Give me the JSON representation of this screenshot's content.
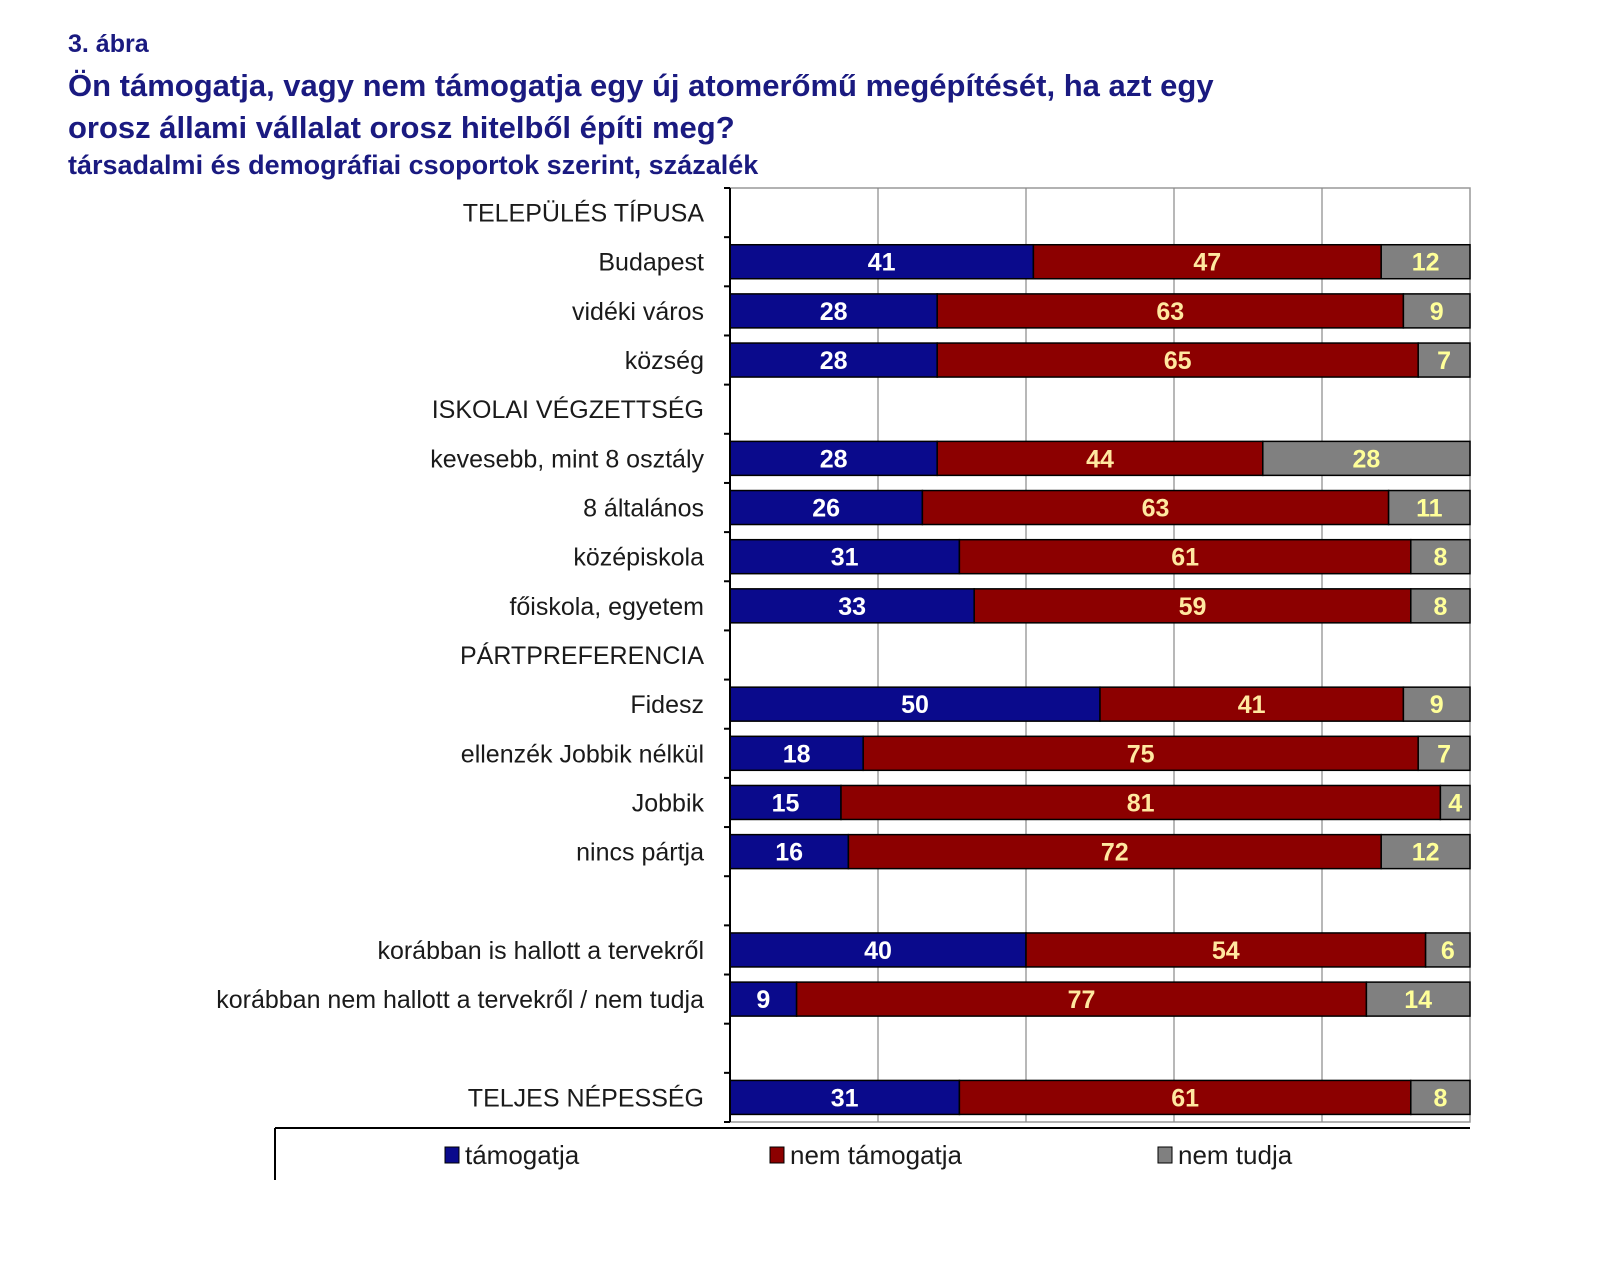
{
  "figure_number": "3.  ábra",
  "title_line1": "Ön támogatja, vagy nem támogatja egy új atomerőmű megépítését, ha azt egy",
  "title_line2": "orosz állami vállalat orosz hitelből építi meg?",
  "subtitle": "társadalmi és demográfiai csoportok szerint, százalék",
  "colors": {
    "title": "#1a1a80",
    "tamogatja": "#0a0a8c",
    "nem_tamogatja": "#8c0000",
    "nem_tudja": "#808080",
    "label_on_blue": "#ffffff",
    "label_on_red": "#ffe8a0",
    "label_on_grey": "#ffff99"
  },
  "chart_data": {
    "type": "bar",
    "orientation": "horizontal",
    "stacked": true,
    "title": "Ön támogatja, vagy nem támogatja egy új atomerőmű megépítését, ha azt egy orosz állami vállalat orosz hitelből építi meg?",
    "subtitle": "társadalmi és demográfiai csoportok szerint, százalék",
    "xlabel": "",
    "ylabel": "",
    "xlim": [
      0,
      100
    ],
    "x_grid_step": 20,
    "grid": true,
    "legend_position": "bottom",
    "categories": [
      "TELEPÜLÉS TÍPUSA",
      "Budapest",
      "vidéki város",
      "község",
      "ISKOLAI VÉGZETTSÉG",
      "kevesebb, mint 8 osztály",
      "8 általános",
      "középiskola",
      "főiskola, egyetem",
      "PÁRTPREFERENCIA",
      "Fidesz",
      "ellenzék Jobbik nélkül",
      "Jobbik",
      "nincs pártja",
      "",
      "korábban is hallott a tervekről",
      "korábban nem hallott a tervekről / nem tudja",
      "",
      "TELJES NÉPESSÉG"
    ],
    "series": [
      {
        "name": "támogatja",
        "values": [
          null,
          41,
          28,
          28,
          null,
          28,
          26,
          31,
          33,
          null,
          50,
          18,
          15,
          16,
          null,
          40,
          9,
          null,
          31
        ]
      },
      {
        "name": "nem támogatja",
        "values": [
          null,
          47,
          63,
          65,
          null,
          44,
          63,
          61,
          59,
          null,
          41,
          75,
          81,
          72,
          null,
          54,
          77,
          null,
          61
        ]
      },
      {
        "name": "nem tudja",
        "values": [
          null,
          12,
          9,
          7,
          null,
          28,
          11,
          8,
          8,
          null,
          9,
          7,
          4,
          12,
          null,
          6,
          14,
          null,
          8
        ]
      }
    ]
  },
  "legend": [
    {
      "label": "támogatja",
      "color_key": "tamogatja"
    },
    {
      "label": "nem támogatja",
      "color_key": "nem_tamogatja"
    },
    {
      "label": "nem tudja",
      "color_key": "nem_tudja"
    }
  ]
}
